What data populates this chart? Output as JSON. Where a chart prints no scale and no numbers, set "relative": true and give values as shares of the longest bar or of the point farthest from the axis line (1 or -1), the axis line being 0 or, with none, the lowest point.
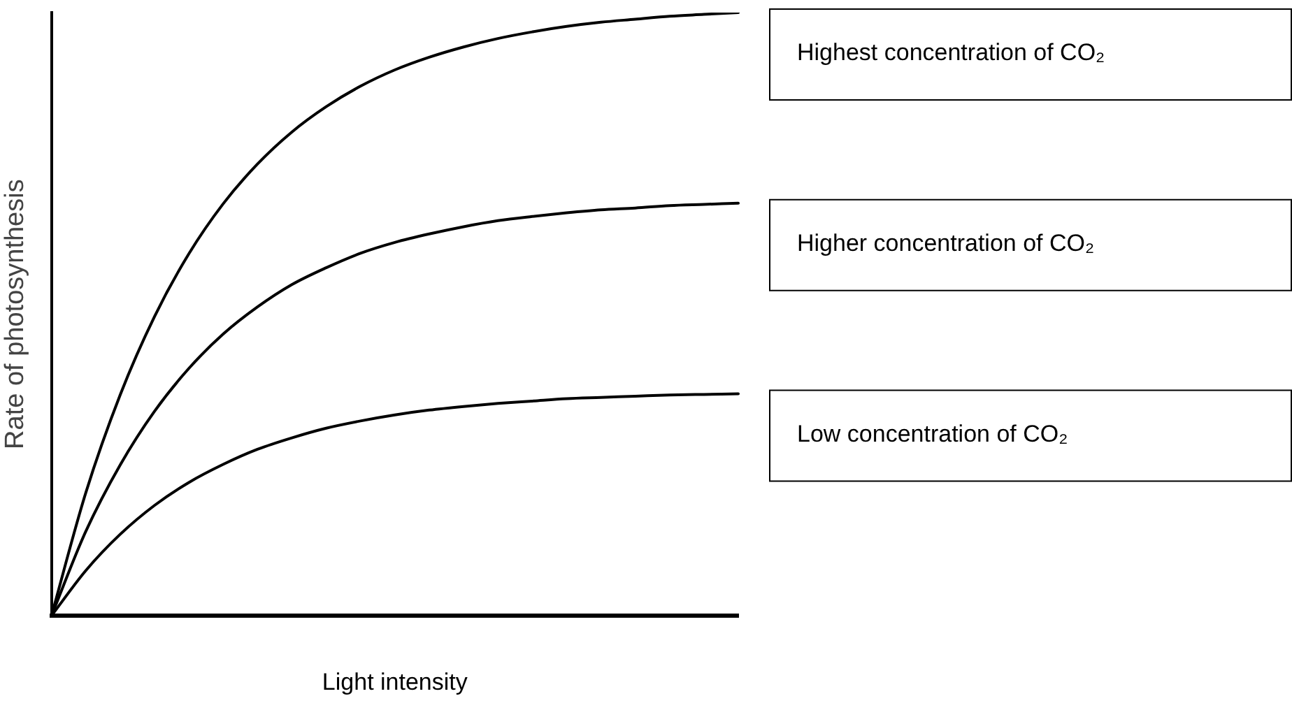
{
  "chart_data": {
    "type": "line",
    "relative": true,
    "xlabel": "Light intensity",
    "ylabel": "Rate of photosynthesis",
    "tick_labels": false,
    "grid": false,
    "marker": "none",
    "line_style": "solid",
    "categories": [
      null,
      null,
      null,
      null,
      null,
      null,
      null,
      null,
      null,
      null,
      null,
      null,
      null,
      null,
      null,
      null,
      null,
      null,
      null,
      null,
      null
    ],
    "series": [
      {
        "name": "Highest concentration of CO₂",
        "color": "#000000",
        "values": [
          0,
          0.204,
          0.366,
          0.496,
          0.6,
          0.683,
          0.749,
          0.802,
          0.844,
          0.878,
          0.905,
          0.926,
          0.943,
          0.957,
          0.968,
          0.977,
          0.984,
          0.989,
          0.994,
          0.997,
          1
        ]
      },
      {
        "name": "Higher concentration of CO₂",
        "color": "#000000",
        "values": [
          0,
          0.14,
          0.25,
          0.339,
          0.41,
          0.467,
          0.512,
          0.549,
          0.577,
          0.601,
          0.619,
          0.633,
          0.645,
          0.655,
          0.662,
          0.668,
          0.673,
          0.676,
          0.68,
          0.682,
          0.684
        ]
      },
      {
        "name": "Low concentration of CO₂",
        "color": "#000000",
        "values": [
          0,
          0.075,
          0.135,
          0.183,
          0.221,
          0.251,
          0.276,
          0.295,
          0.311,
          0.323,
          0.333,
          0.341,
          0.347,
          0.352,
          0.356,
          0.36,
          0.362,
          0.364,
          0.366,
          0.367,
          0.368
        ]
      }
    ]
  }
}
